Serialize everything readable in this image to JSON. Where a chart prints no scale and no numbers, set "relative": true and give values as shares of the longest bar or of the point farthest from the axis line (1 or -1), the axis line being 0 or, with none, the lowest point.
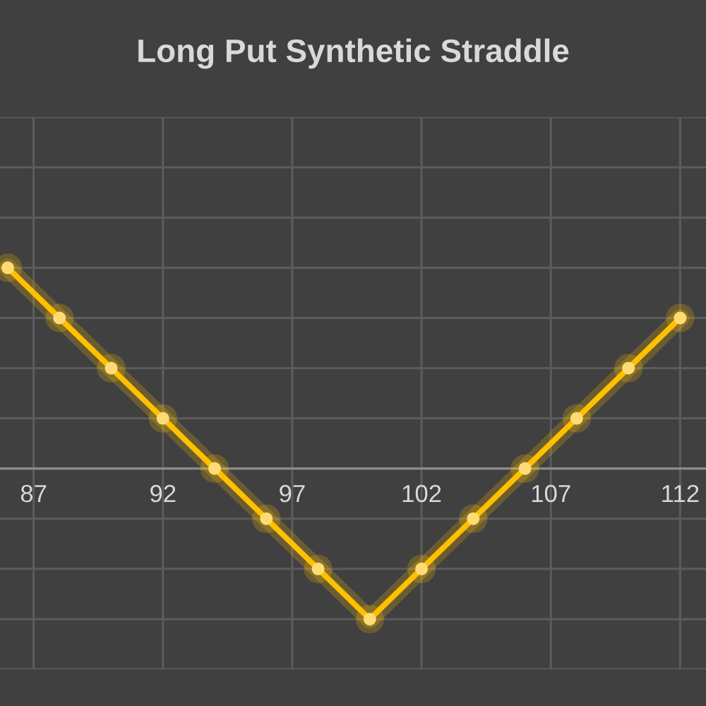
{
  "chart_data": {
    "type": "line",
    "title": "Long Put Synthetic Straddle",
    "x": [
      86,
      88,
      90,
      92,
      94,
      96,
      98,
      100,
      102,
      104,
      106,
      108,
      110,
      112
    ],
    "values": [
      1,
      0.75,
      0.5,
      0.25,
      0,
      -0.25,
      -0.5,
      -0.75,
      -0.5,
      -0.25,
      0,
      0.25,
      0.5,
      0.75
    ],
    "color": "#ffc000",
    "relative": true,
    "xlim": [
      85.7,
      113
    ],
    "xticks": [
      87,
      92,
      97,
      102,
      107,
      112
    ],
    "grid": true,
    "marker": "circle",
    "line_style": "solid"
  }
}
